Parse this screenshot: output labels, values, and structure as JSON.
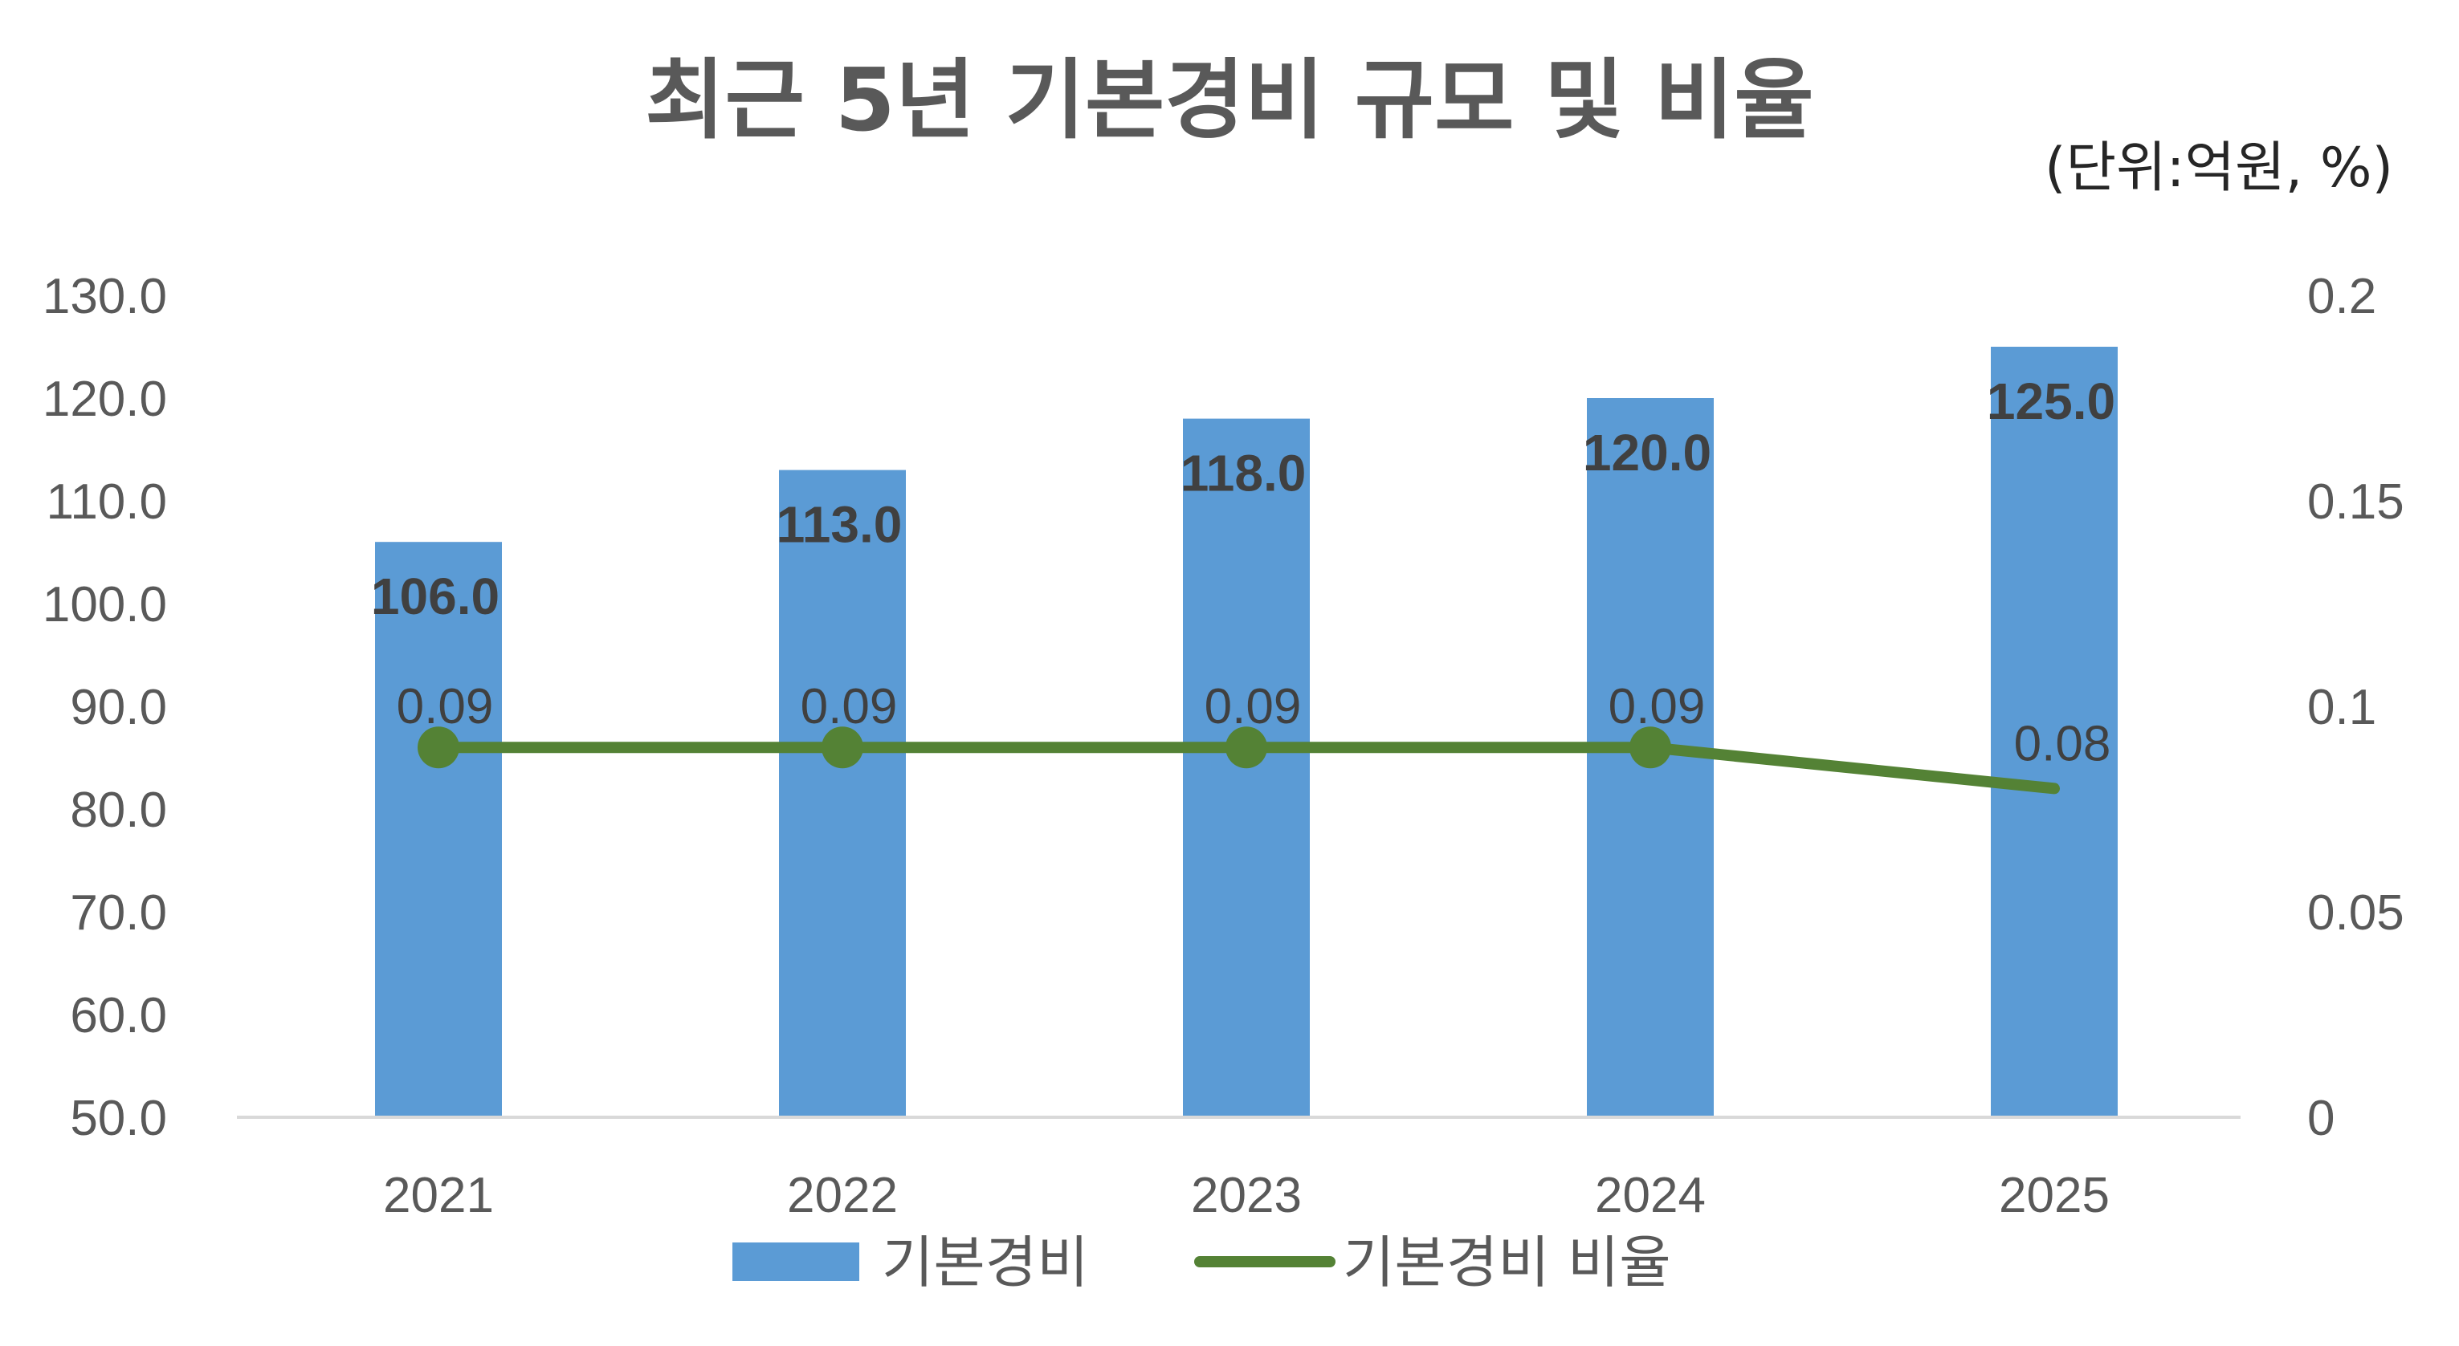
{
  "chart_data": {
    "type": "bar",
    "title": "최근 5년 기본경비 규모 및 비율",
    "unit_note": "(단위:억원, %)",
    "categories": [
      "2021",
      "2022",
      "2023",
      "2024",
      "2025"
    ],
    "series": [
      {
        "name": "기본경비",
        "type": "bar",
        "axis": "left",
        "values": [
          106.0,
          113.0,
          118.0,
          120.0,
          125.0
        ],
        "labels": [
          "106.0",
          "113.0",
          "118.0",
          "120.0",
          "125.0"
        ],
        "color": "#5B9BD5"
      },
      {
        "name": "기본경비 비율",
        "type": "line",
        "axis": "right",
        "values": [
          0.09,
          0.09,
          0.09,
          0.09,
          0.08
        ],
        "labels": [
          "0.09",
          "0.09",
          "0.09",
          "0.09",
          "0.08"
        ],
        "color": "#548235"
      }
    ],
    "y_left": {
      "min": 50,
      "max": 130,
      "ticks": [
        "50.0",
        "60.0",
        "70.0",
        "80.0",
        "90.0",
        "100.0",
        "110.0",
        "120.0",
        "130.0"
      ]
    },
    "y_right": {
      "min": 0,
      "max": 0.2,
      "ticks": [
        "0",
        "0.05",
        "0.1",
        "0.15",
        "0.2"
      ]
    },
    "grid": false,
    "legend_position": "bottom"
  }
}
